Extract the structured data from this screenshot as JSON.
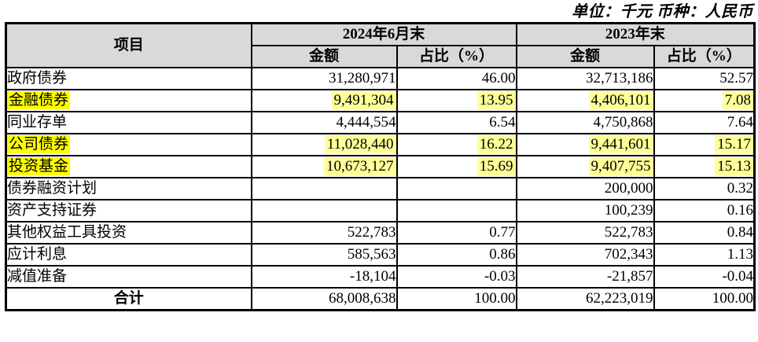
{
  "note": "单位：千元 币种：人民币",
  "colors": {
    "header_bg": "#d9d9d9",
    "label_highlight": "#ffff00",
    "value_highlight": "#ffff99"
  },
  "table": {
    "headers": {
      "item": "项目",
      "period_2024": "2024年6月末",
      "period_2023": "2023年末",
      "amount_2024": "金额",
      "ratio_2024": "占比（%）",
      "amount_2023": "金额",
      "ratio_2023": "占比（%）"
    },
    "rows": [
      {
        "label": "政府债券",
        "amount_2024": "31,280,971",
        "ratio_2024": "46.00",
        "amount_2023": "32,713,186",
        "ratio_2023": "52.57",
        "highlighted": false
      },
      {
        "label": "金融债券",
        "amount_2024": "9,491,304",
        "ratio_2024": "13.95",
        "amount_2023": "4,406,101",
        "ratio_2023": "7.08",
        "highlighted": true
      },
      {
        "label": "同业存单",
        "amount_2024": "4,444,554",
        "ratio_2024": "6.54",
        "amount_2023": "4,750,868",
        "ratio_2023": "7.64",
        "highlighted": false
      },
      {
        "label": "公司债券",
        "amount_2024": "11,028,440",
        "ratio_2024": "16.22",
        "amount_2023": "9,441,601",
        "ratio_2023": "15.17",
        "highlighted": true
      },
      {
        "label": "投资基金",
        "amount_2024": "10,673,127",
        "ratio_2024": "15.69",
        "amount_2023": "9,407,755",
        "ratio_2023": "15.13",
        "highlighted": true
      },
      {
        "label": "债券融资计划",
        "amount_2024": "",
        "ratio_2024": "",
        "amount_2023": "200,000",
        "ratio_2023": "0.32",
        "highlighted": false
      },
      {
        "label": "资产支持证券",
        "amount_2024": "",
        "ratio_2024": "",
        "amount_2023": "100,239",
        "ratio_2023": "0.16",
        "highlighted": false
      },
      {
        "label": "其他权益工具投资",
        "amount_2024": "522,783",
        "ratio_2024": "0.77",
        "amount_2023": "522,783",
        "ratio_2023": "0.84",
        "highlighted": false
      },
      {
        "label": "应计利息",
        "amount_2024": "585,563",
        "ratio_2024": "0.86",
        "amount_2023": "702,343",
        "ratio_2023": "1.13",
        "highlighted": false
      },
      {
        "label": "减值准备",
        "amount_2024": "-18,104",
        "ratio_2024": "-0.03",
        "amount_2023": "-21,857",
        "ratio_2023": "-0.04",
        "highlighted": false
      }
    ],
    "total_row": {
      "label": "合计",
      "amount_2024": "68,008,638",
      "ratio_2024": "100.00",
      "amount_2023": "62,223,019",
      "ratio_2023": "100.00"
    }
  }
}
